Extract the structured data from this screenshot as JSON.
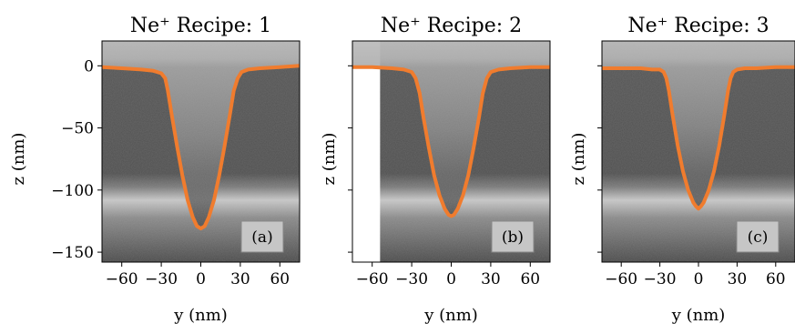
{
  "chart_data": [
    {
      "type": "line",
      "title": "Ne$^+$ Recipe: 1",
      "title_display": "Ne⁺ Recipe: 1",
      "panel_label": "(a)",
      "xlabel": "y (nm)",
      "ylabel": "z (nm)",
      "xlim": [
        -75,
        75
      ],
      "ylim": [
        -158,
        20
      ],
      "xticks": [
        -60,
        -30,
        0,
        30,
        60
      ],
      "xtick_labels": [
        "−60",
        "−30",
        "0",
        "30",
        "60"
      ],
      "yticks": [
        0,
        -50,
        -100,
        -150
      ],
      "ytick_labels": [
        "0",
        "−50",
        "−100",
        "−150"
      ],
      "show_xtick_labels": true,
      "show_ytick_labels": true,
      "image_left_edge": -75,
      "series": [
        {
          "color": "#f07c2e",
          "x": [
            -75,
            -60,
            -45,
            -36,
            -30,
            -27,
            -25,
            -22,
            -18,
            -14,
            -10,
            -6,
            -3,
            0,
            3,
            6,
            10,
            14,
            18,
            22,
            25,
            28,
            31,
            36,
            45,
            60,
            75
          ],
          "y": [
            -1,
            -2,
            -3,
            -4,
            -6,
            -10,
            -20,
            -40,
            -65,
            -88,
            -108,
            -122,
            -129,
            -131,
            -129,
            -122,
            -108,
            -88,
            -65,
            -40,
            -20,
            -10,
            -5,
            -3,
            -2,
            -1,
            0
          ]
        }
      ]
    },
    {
      "type": "line",
      "title": "Ne$^+$ Recipe: 2",
      "title_display": "Ne⁺ Recipe: 2",
      "panel_label": "(b)",
      "xlabel": "y (nm)",
      "ylabel": "z (nm)",
      "xlim": [
        -75,
        75
      ],
      "ylim": [
        -158,
        20
      ],
      "xticks": [
        -60,
        -30,
        0,
        30,
        60
      ],
      "xtick_labels": [
        "−60",
        "−30",
        "0",
        "30",
        "60"
      ],
      "yticks": [
        0,
        -50,
        -100,
        -150
      ],
      "ytick_labels": [],
      "show_xtick_labels": true,
      "show_ytick_labels": false,
      "image_left_edge": -54,
      "series": [
        {
          "color": "#f07c2e",
          "x": [
            -75,
            -60,
            -45,
            -36,
            -30,
            -27,
            -24,
            -21,
            -17,
            -13,
            -9,
            -5,
            -2,
            0,
            2,
            5,
            9,
            13,
            17,
            21,
            24,
            27,
            30,
            36,
            45,
            60,
            75
          ],
          "y": [
            -1,
            -1,
            -2,
            -3,
            -5,
            -10,
            -22,
            -42,
            -66,
            -88,
            -104,
            -115,
            -120,
            -121,
            -120,
            -115,
            -104,
            -88,
            -66,
            -42,
            -22,
            -10,
            -5,
            -3,
            -2,
            -1,
            -1
          ]
        }
      ]
    },
    {
      "type": "line",
      "title": "Ne$^+$ Recipe: 3",
      "title_display": "Ne⁺ Recipe: 3",
      "panel_label": "(c)",
      "xlabel": "y (nm)",
      "ylabel": "z (nm)",
      "xlim": [
        -75,
        75
      ],
      "ylim": [
        -158,
        20
      ],
      "xticks": [
        -60,
        -30,
        0,
        30,
        60
      ],
      "xtick_labels": [
        "−60",
        "−30",
        "0",
        "30",
        "60"
      ],
      "yticks": [
        0,
        -50,
        -100,
        -150
      ],
      "ytick_labels": [],
      "show_xtick_labels": true,
      "show_ytick_labels": false,
      "image_left_edge": -75,
      "series": [
        {
          "color": "#f07c2e",
          "x": [
            -75,
            -60,
            -45,
            -36,
            -30,
            -27,
            -25,
            -23,
            -20,
            -16,
            -12,
            -8,
            -4,
            -2,
            0,
            2,
            4,
            8,
            12,
            16,
            20,
            23,
            25,
            27,
            30,
            36,
            45,
            60,
            75
          ],
          "y": [
            -2,
            -2,
            -2,
            -3,
            -3,
            -5,
            -10,
            -20,
            -40,
            -65,
            -85,
            -100,
            -110,
            -113,
            -115,
            -113,
            -110,
            -100,
            -85,
            -65,
            -40,
            -20,
            -10,
            -5,
            -3,
            -2,
            -2,
            -1,
            -1
          ]
        }
      ]
    }
  ]
}
